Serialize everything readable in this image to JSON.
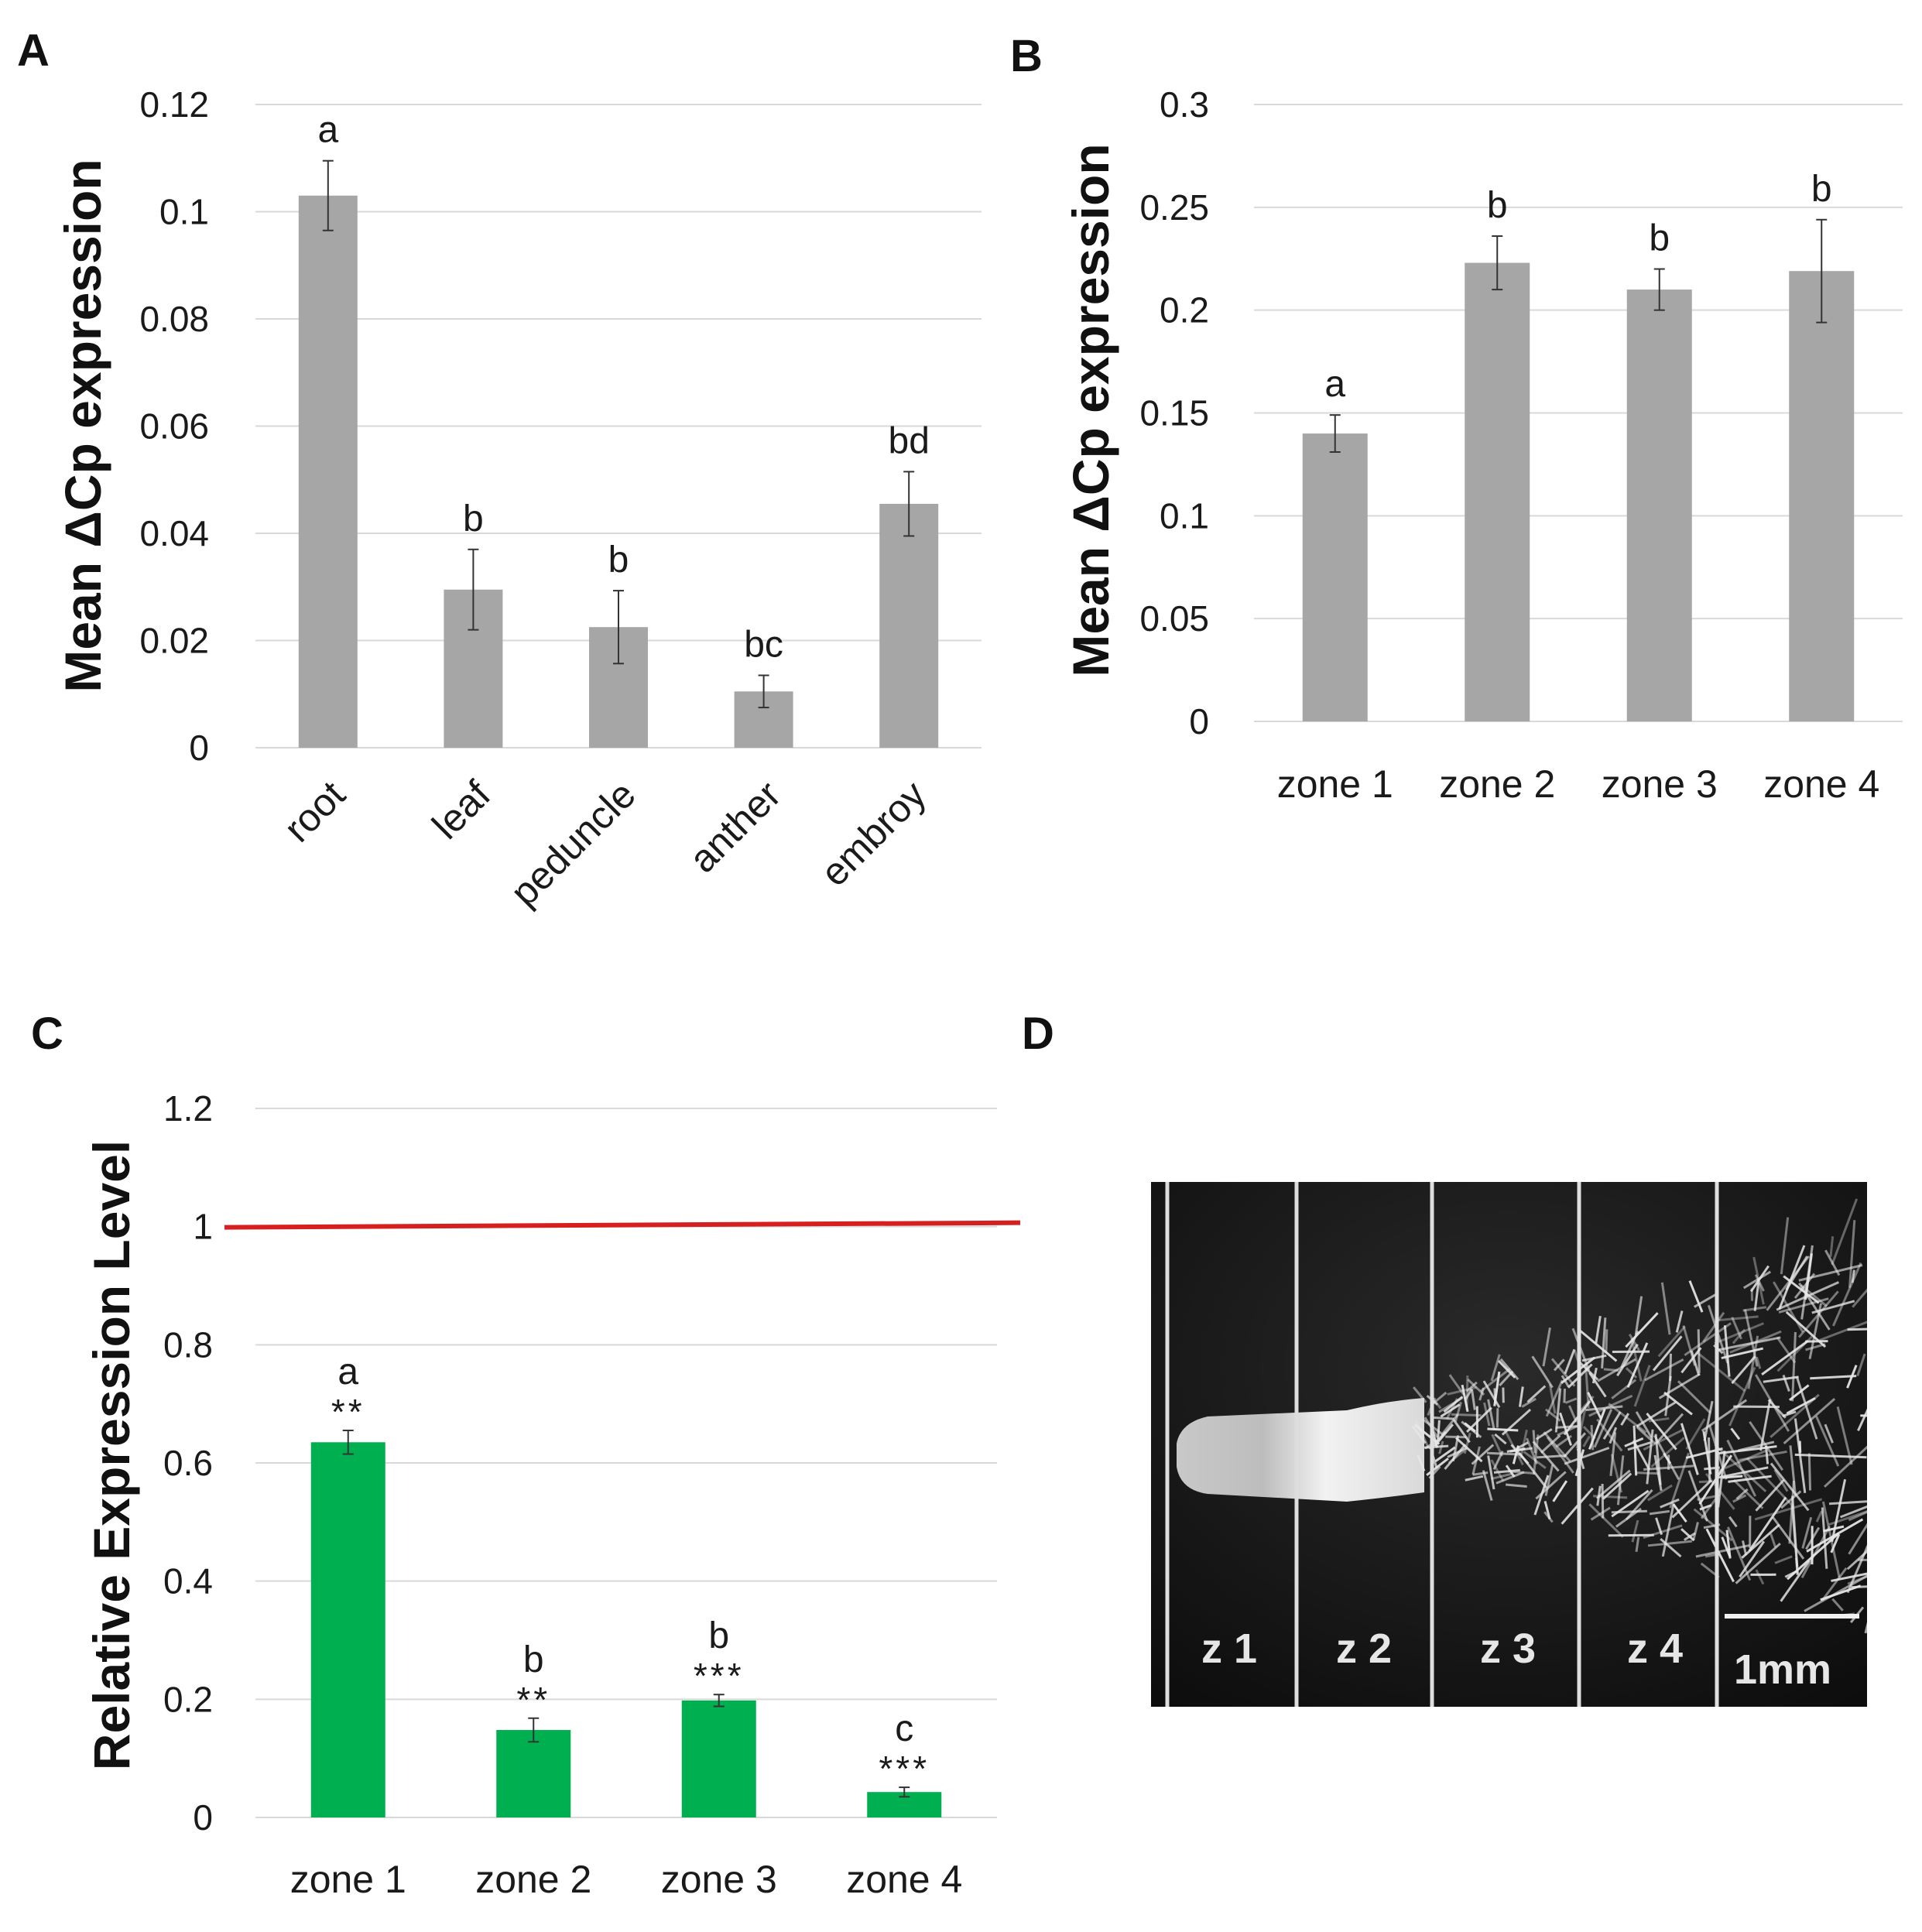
{
  "panels": {
    "a": "A",
    "b": "B",
    "c": "C",
    "d": "D"
  },
  "chart_data": [
    {
      "id": "A",
      "type": "bar",
      "ylabel": "Mean ΔCp expression",
      "xlabel": "",
      "title": "",
      "categories": [
        "root",
        "leaf",
        "peduncle",
        "anther",
        "embroy"
      ],
      "values": [
        0.103,
        0.0295,
        0.0225,
        0.0105,
        0.0455
      ],
      "errors": [
        0.0065,
        0.0075,
        0.0068,
        0.003,
        0.006
      ],
      "letters": [
        "a",
        "b",
        "b",
        "bc",
        "bd"
      ],
      "ylim": [
        0,
        0.12
      ],
      "yticks": [
        "0",
        "0.02",
        "0.04",
        "0.06",
        "0.08",
        "0.1",
        "0.12"
      ],
      "ytick_values": [
        0,
        0.02,
        0.04,
        0.06,
        0.08,
        0.1,
        0.12
      ],
      "grid": true,
      "bar_color": "#a6a6a6"
    },
    {
      "id": "B",
      "type": "bar",
      "ylabel": "Mean ΔCp expression",
      "xlabel": "",
      "title": "",
      "categories": [
        "zone 1",
        "zone 2",
        "zone 3",
        "zone 4"
      ],
      "values": [
        0.14,
        0.223,
        0.21,
        0.219
      ],
      "errors": [
        0.009,
        0.013,
        0.01,
        0.025
      ],
      "letters": [
        "a",
        "b",
        "b",
        "b"
      ],
      "ylim": [
        0,
        0.3
      ],
      "yticks": [
        "0",
        "0.05",
        "0.1",
        "0.15",
        "0.2",
        "0.25",
        "0.3"
      ],
      "ytick_values": [
        0,
        0.05,
        0.1,
        0.15,
        0.2,
        0.25,
        0.3
      ],
      "grid": true,
      "bar_color": "#a6a6a6"
    },
    {
      "id": "C",
      "type": "bar",
      "ylabel": "Relative Expression Level",
      "xlabel": "",
      "title": "",
      "categories": [
        "zone 1",
        "zone 2",
        "zone 3",
        "zone 4"
      ],
      "values": [
        0.635,
        0.148,
        0.198,
        0.043
      ],
      "errors": [
        0.02,
        0.02,
        0.01,
        0.008
      ],
      "letters": [
        "a",
        "b",
        "b",
        "c"
      ],
      "stars": [
        "**",
        "**",
        "***",
        "***"
      ],
      "reference_line": 1,
      "reference_color": "#d62020",
      "ylim": [
        0,
        1.2
      ],
      "yticks": [
        "0",
        "0.2",
        "0.4",
        "0.6",
        "0.8",
        "1",
        "1.2"
      ],
      "ytick_values": [
        0,
        0.2,
        0.4,
        0.6,
        0.8,
        1,
        1.2
      ],
      "grid": true,
      "bar_color": "#00b050"
    }
  ],
  "photo": {
    "zone_labels": [
      "z 1",
      "z 2",
      "z 3",
      "z 4"
    ],
    "scale_label": "1mm"
  }
}
